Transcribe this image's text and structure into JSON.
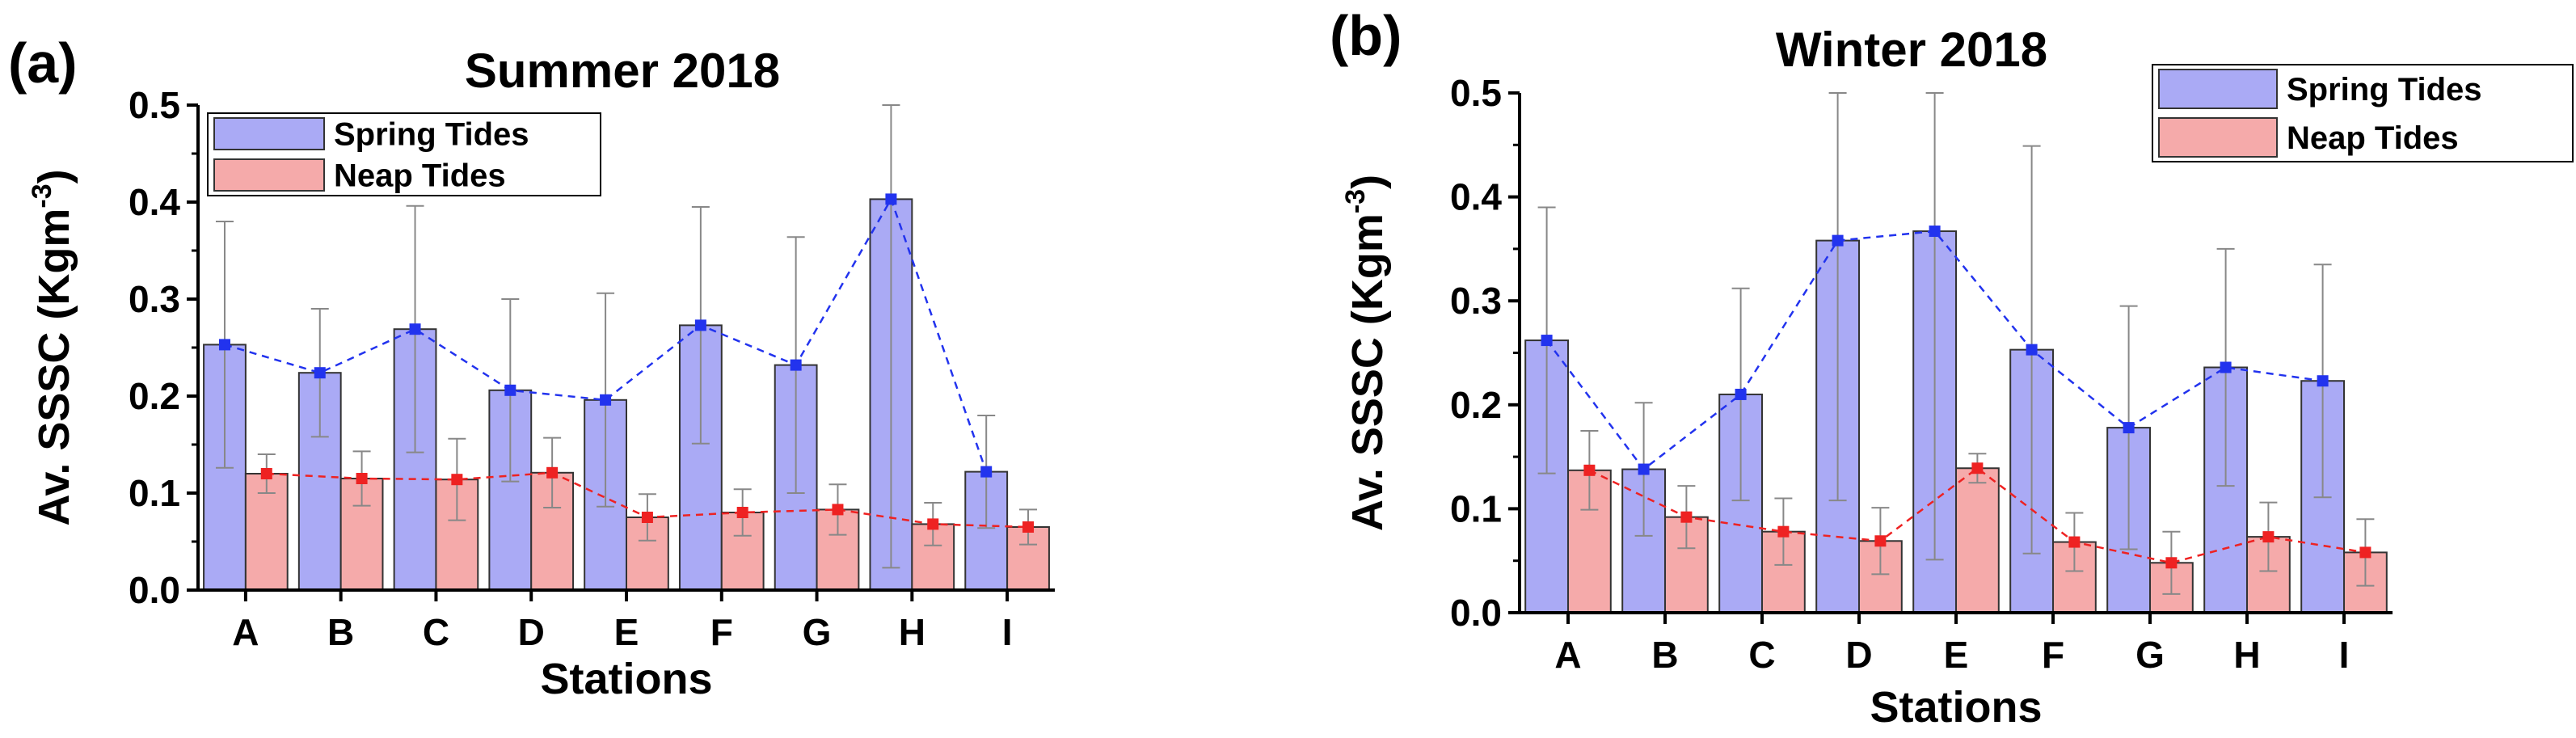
{
  "chart_data": [
    {
      "type": "bar",
      "panel_label": "(a)",
      "title": "Summer 2018",
      "xlabel": "Stations",
      "ylabel": {
        "prefix": "Av. SSSC (Kgm",
        "sup": "-3",
        "suffix": ")"
      },
      "categories": [
        "A",
        "B",
        "C",
        "D",
        "E",
        "F",
        "G",
        "H",
        "I"
      ],
      "ylim": [
        0,
        0.5
      ],
      "yticks": [
        "0.0",
        "0.1",
        "0.2",
        "0.3",
        "0.4",
        "0.5"
      ],
      "legend_position": "top-left",
      "series": [
        {
          "name": "Spring Tides",
          "color": "#aaaaf5",
          "line_color": "#2233ee",
          "values": [
            0.253,
            0.224,
            0.269,
            0.206,
            0.196,
            0.273,
            0.232,
            0.403,
            0.122
          ],
          "errors": [
            0.127,
            0.066,
            0.127,
            0.094,
            0.11,
            0.122,
            0.132,
            0.38,
            0.058
          ]
        },
        {
          "name": "Neap Tides",
          "color": "#f5aaaa",
          "line_color": "#ee2222",
          "values": [
            0.12,
            0.115,
            0.114,
            0.121,
            0.075,
            0.08,
            0.083,
            0.068,
            0.065
          ],
          "errors": [
            0.02,
            0.028,
            0.042,
            0.036,
            0.024,
            0.024,
            0.026,
            0.022,
            0.018
          ]
        }
      ]
    },
    {
      "type": "bar",
      "panel_label": "(b)",
      "title": "Winter 2018",
      "xlabel": "Stations",
      "ylabel": {
        "prefix": "Av. SSSC (Kgm",
        "sup": "-3",
        "suffix": ")"
      },
      "categories": [
        "A",
        "B",
        "C",
        "D",
        "E",
        "F",
        "G",
        "H",
        "I"
      ],
      "ylim": [
        0,
        0.5
      ],
      "yticks": [
        "0.0",
        "0.1",
        "0.2",
        "0.3",
        "0.4",
        "0.5"
      ],
      "legend_position": "top-right",
      "series": [
        {
          "name": "Spring Tides",
          "color": "#aaaaf5",
          "line_color": "#2233ee",
          "values": [
            0.262,
            0.138,
            0.21,
            0.358,
            0.367,
            0.253,
            0.178,
            0.236,
            0.223
          ],
          "errors": [
            0.128,
            0.064,
            0.102,
            0.25,
            0.316,
            0.196,
            0.117,
            0.114,
            0.112
          ]
        },
        {
          "name": "Neap Tides",
          "color": "#f5aaaa",
          "line_color": "#ee2222",
          "values": [
            0.137,
            0.092,
            0.078,
            0.069,
            0.139,
            0.068,
            0.048,
            0.073,
            0.058
          ],
          "errors": [
            0.038,
            0.03,
            0.032,
            0.032,
            0.014,
            0.028,
            0.03,
            0.033,
            0.032
          ]
        }
      ]
    }
  ]
}
